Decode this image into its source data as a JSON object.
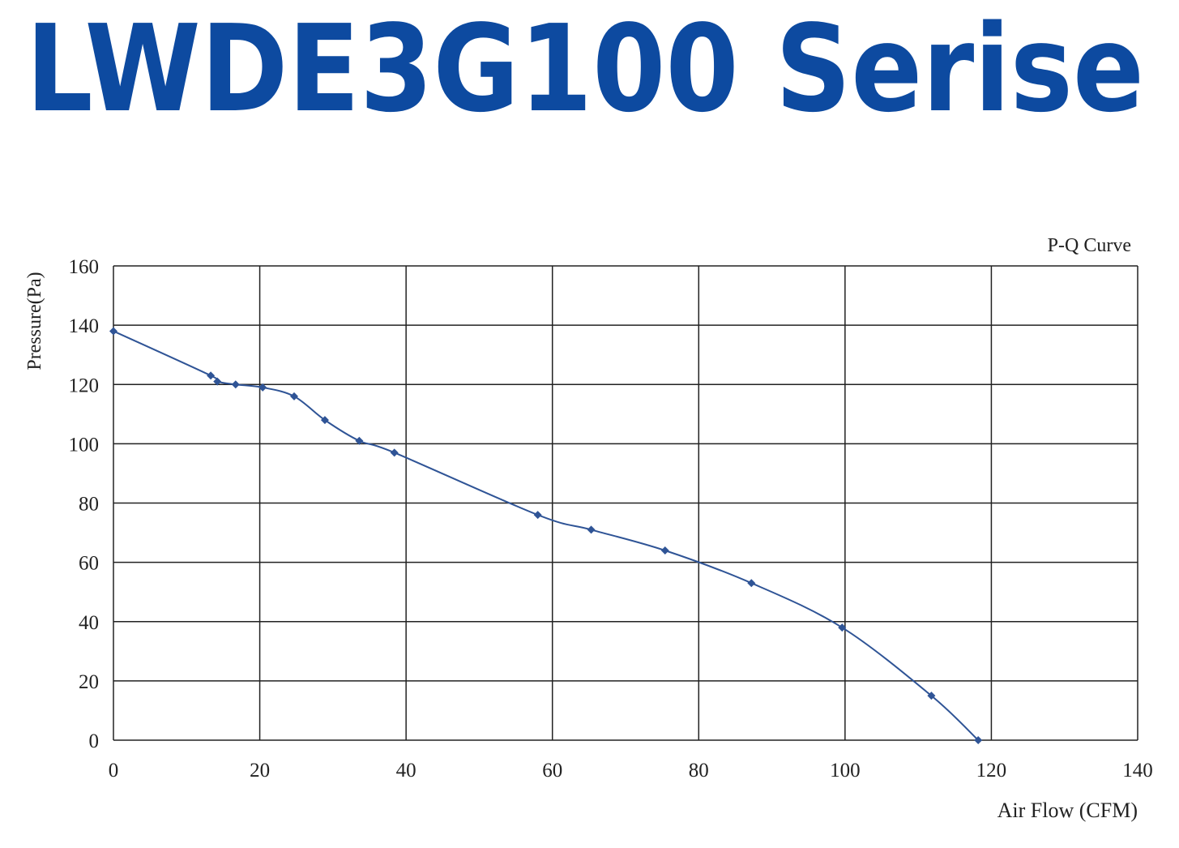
{
  "header": {
    "title": "LWDE3G100 Serise"
  },
  "chart_data": {
    "type": "line",
    "title": "P-Q Curve",
    "x_label": "Air Flow (CFM)",
    "y_label": "Pressure(Pa)",
    "series": [
      {
        "name": "P-Q Curve",
        "color": "#2f5496",
        "x": [
          0,
          13.3,
          14.2,
          16.7,
          20.4,
          24.7,
          28.9,
          33.6,
          38.4,
          58,
          65.3,
          75.4,
          87.2,
          99.6,
          111.8,
          118.2
        ],
        "values": [
          138,
          123,
          121,
          120,
          119,
          116,
          108,
          101,
          97,
          76,
          71,
          64,
          53,
          38,
          15,
          0
        ]
      }
    ],
    "xlim": [
      0,
      140
    ],
    "xticks": [
      0,
      20,
      40,
      60,
      80,
      100,
      120,
      140
    ],
    "ylim": [
      0,
      160
    ],
    "yticks": [
      0,
      20,
      40,
      60,
      80,
      100,
      120,
      140,
      160
    ],
    "grid": true
  }
}
